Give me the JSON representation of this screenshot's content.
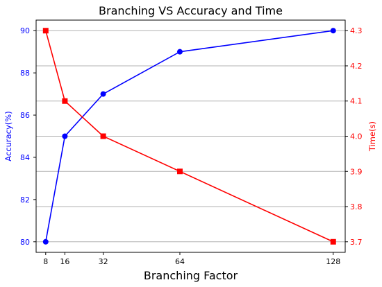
{
  "chart_data": {
    "type": "line",
    "title": "Branching VS Accuracy and Time",
    "xlabel": "Branching Factor",
    "x": [
      8,
      16,
      32,
      64,
      128
    ],
    "x_ticks": [
      "8",
      "16",
      "32",
      "64",
      "128"
    ],
    "xlim": [
      4,
      133
    ],
    "grid": "horizontal (right axis)",
    "series": [
      {
        "axis": "left",
        "ylabel": "Accuracy(%)",
        "color": "#0000ff",
        "marker": "circle",
        "values": [
          80,
          85,
          87,
          89,
          90
        ],
        "ylim": [
          79.5,
          90.5
        ],
        "ticks": [
          "80",
          "82",
          "84",
          "86",
          "88",
          "90"
        ]
      },
      {
        "axis": "right",
        "ylabel": "Time(s)",
        "color": "#ff0000",
        "marker": "square",
        "values": [
          4.3,
          4.1,
          4.0,
          3.9,
          3.7
        ],
        "ylim": [
          3.67,
          4.33
        ],
        "ticks": [
          "3.7",
          "3.8",
          "3.9",
          "4.0",
          "4.1",
          "4.2",
          "4.3"
        ]
      }
    ]
  }
}
